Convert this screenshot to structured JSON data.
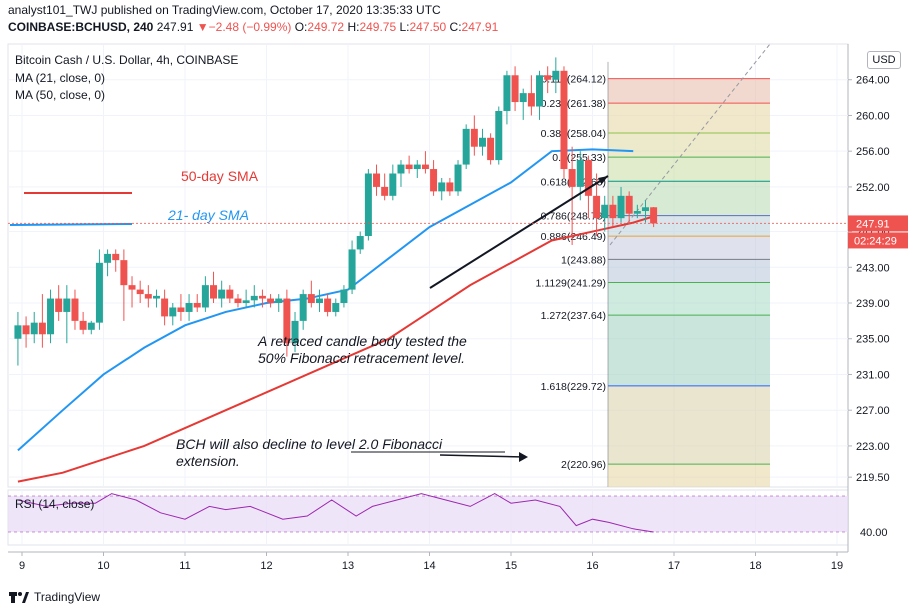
{
  "header": {
    "publisher_line": "analyst101_TWJ published on TradingView.com, October 17, 2020 13:35:33 UTC",
    "symbol": "COINBASE:BCHUSD, 240",
    "last": "247.91",
    "change_arrow": "▼",
    "change": "−2.48 (−0.99%)",
    "o_label": "O:",
    "o_value": "249.72",
    "h_label": "H:",
    "h_value": "249.75",
    "l_label": "L:",
    "l_value": "247.50",
    "c_label": "C:",
    "c_value": "247.91"
  },
  "legend": {
    "title": "Bitcoin Cash / U.S. Dollar, 4h, COINBASE",
    "ma21": "MA (21, close, 0)",
    "ma50": "MA (50, close, 0)",
    "rsi": "RSI (14, close)"
  },
  "currency_button": "USD",
  "price_tag": {
    "value": "247.91",
    "countdown": "02:24:29",
    "color": "#ef5350"
  },
  "annotations": {
    "sma50": "50-day SMA",
    "sma21": "21- day SMA",
    "note1_line1": "A retraced candle body tested the",
    "note1_line2": "50% Fibonacci retracement level.",
    "note2_line1": "BCH will also decline to level 2.0 Fibonacci",
    "note2_line2": "extension."
  },
  "footer": {
    "brand": "TradingView"
  },
  "colors": {
    "up": "#26a69a",
    "down": "#ef5350",
    "ma21": "#2196f3",
    "ma50": "#e53935",
    "rsi": "#9c27b0",
    "rsi_band": "#e9dcf7",
    "grid": "#f0f3fa"
  },
  "chart_data": {
    "type": "candlestick",
    "price_axis": {
      "ticks": [
        264.0,
        260.0,
        256.0,
        252.0,
        247.0,
        243.0,
        239.0,
        235.0,
        231.0,
        227.0,
        223.0,
        219.5
      ],
      "range": [
        218.4,
        268.0
      ]
    },
    "rsi_axis": {
      "ticks": [
        40.0
      ]
    },
    "x_ticks": [
      "9",
      "10",
      "11",
      "12",
      "13",
      "14",
      "15",
      "16",
      "17",
      "18",
      "19"
    ],
    "candles": [
      {
        "x": 8.95,
        "o": 235.0,
        "h": 238.0,
        "l": 232.0,
        "c": 236.5
      },
      {
        "x": 9.05,
        "o": 236.5,
        "h": 237.5,
        "l": 234.0,
        "c": 235.5
      },
      {
        "x": 9.15,
        "o": 235.5,
        "h": 238.0,
        "l": 234.5,
        "c": 236.8
      },
      {
        "x": 9.25,
        "o": 236.8,
        "h": 240.0,
        "l": 234.0,
        "c": 235.5
      },
      {
        "x": 9.35,
        "o": 235.5,
        "h": 240.5,
        "l": 234.5,
        "c": 239.5
      },
      {
        "x": 9.45,
        "o": 239.5,
        "h": 241.0,
        "l": 237.0,
        "c": 238.0
      },
      {
        "x": 9.55,
        "o": 238.0,
        "h": 241.0,
        "l": 234.5,
        "c": 239.5
      },
      {
        "x": 9.65,
        "o": 239.5,
        "h": 240.5,
        "l": 236.0,
        "c": 237.0
      },
      {
        "x": 9.75,
        "o": 237.0,
        "h": 238.0,
        "l": 235.5,
        "c": 236.0
      },
      {
        "x": 9.85,
        "o": 236.0,
        "h": 237.0,
        "l": 235.5,
        "c": 236.8
      },
      {
        "x": 9.95,
        "o": 236.8,
        "h": 245.0,
        "l": 236.0,
        "c": 243.5
      },
      {
        "x": 10.05,
        "o": 243.5,
        "h": 245.0,
        "l": 242.0,
        "c": 244.5
      },
      {
        "x": 10.15,
        "o": 244.5,
        "h": 245.0,
        "l": 242.5,
        "c": 243.8
      },
      {
        "x": 10.25,
        "o": 243.8,
        "h": 245.0,
        "l": 237.0,
        "c": 241.0
      },
      {
        "x": 10.35,
        "o": 241.0,
        "h": 242.0,
        "l": 238.5,
        "c": 240.5
      },
      {
        "x": 10.45,
        "o": 240.5,
        "h": 241.5,
        "l": 239.0,
        "c": 240.0
      },
      {
        "x": 10.55,
        "o": 240.0,
        "h": 241.0,
        "l": 238.5,
        "c": 239.5
      },
      {
        "x": 10.65,
        "o": 239.5,
        "h": 240.5,
        "l": 238.5,
        "c": 239.8
      },
      {
        "x": 10.75,
        "o": 239.5,
        "h": 240.5,
        "l": 236.5,
        "c": 237.5
      },
      {
        "x": 10.85,
        "o": 237.5,
        "h": 239.0,
        "l": 236.5,
        "c": 238.5
      },
      {
        "x": 10.95,
        "o": 238.5,
        "h": 240.0,
        "l": 237.0,
        "c": 238.0
      },
      {
        "x": 11.05,
        "o": 238.0,
        "h": 240.0,
        "l": 237.0,
        "c": 239.0
      },
      {
        "x": 11.15,
        "o": 239.0,
        "h": 240.0,
        "l": 238.0,
        "c": 238.5
      },
      {
        "x": 11.25,
        "o": 238.5,
        "h": 242.0,
        "l": 238.0,
        "c": 241.0
      },
      {
        "x": 11.35,
        "o": 241.0,
        "h": 242.5,
        "l": 239.0,
        "c": 239.5
      },
      {
        "x": 11.45,
        "o": 239.5,
        "h": 241.5,
        "l": 238.5,
        "c": 240.5
      },
      {
        "x": 11.55,
        "o": 240.5,
        "h": 241.0,
        "l": 239.0,
        "c": 239.5
      },
      {
        "x": 11.65,
        "o": 239.5,
        "h": 240.0,
        "l": 238.5,
        "c": 239.0
      },
      {
        "x": 11.75,
        "o": 239.0,
        "h": 240.5,
        "l": 238.5,
        "c": 239.3
      },
      {
        "x": 11.85,
        "o": 239.3,
        "h": 241.0,
        "l": 238.5,
        "c": 239.8
      },
      {
        "x": 11.95,
        "o": 239.8,
        "h": 240.5,
        "l": 238.5,
        "c": 239.5
      },
      {
        "x": 12.05,
        "o": 239.5,
        "h": 240.0,
        "l": 238.5,
        "c": 239.0
      },
      {
        "x": 12.15,
        "o": 239.0,
        "h": 240.0,
        "l": 238.0,
        "c": 239.5
      },
      {
        "x": 12.25,
        "o": 239.5,
        "h": 240.5,
        "l": 233.0,
        "c": 234.5
      },
      {
        "x": 12.35,
        "o": 234.5,
        "h": 238.0,
        "l": 233.5,
        "c": 237.0
      },
      {
        "x": 12.45,
        "o": 237.0,
        "h": 240.5,
        "l": 236.0,
        "c": 240.0
      },
      {
        "x": 12.55,
        "o": 240.0,
        "h": 241.5,
        "l": 238.5,
        "c": 239.0
      },
      {
        "x": 12.65,
        "o": 239.0,
        "h": 240.5,
        "l": 238.0,
        "c": 239.5
      },
      {
        "x": 12.75,
        "o": 239.5,
        "h": 240.0,
        "l": 237.5,
        "c": 238.0
      },
      {
        "x": 12.85,
        "o": 238.0,
        "h": 239.5,
        "l": 237.5,
        "c": 239.0
      },
      {
        "x": 12.95,
        "o": 239.0,
        "h": 241.0,
        "l": 238.5,
        "c": 240.5
      },
      {
        "x": 13.05,
        "o": 240.5,
        "h": 246.0,
        "l": 240.0,
        "c": 245.0
      },
      {
        "x": 13.15,
        "o": 245.0,
        "h": 247.0,
        "l": 244.5,
        "c": 246.5
      },
      {
        "x": 13.25,
        "o": 246.5,
        "h": 254.0,
        "l": 246.0,
        "c": 253.5
      },
      {
        "x": 13.35,
        "o": 253.5,
        "h": 254.5,
        "l": 251.0,
        "c": 252.0
      },
      {
        "x": 13.45,
        "o": 252.0,
        "h": 253.5,
        "l": 250.5,
        "c": 251.0
      },
      {
        "x": 13.55,
        "o": 251.0,
        "h": 254.5,
        "l": 250.5,
        "c": 253.5
      },
      {
        "x": 13.65,
        "o": 253.5,
        "h": 255.0,
        "l": 252.0,
        "c": 254.5
      },
      {
        "x": 13.75,
        "o": 254.5,
        "h": 255.5,
        "l": 253.5,
        "c": 254.0
      },
      {
        "x": 13.85,
        "o": 254.0,
        "h": 255.0,
        "l": 253.0,
        "c": 254.5
      },
      {
        "x": 13.95,
        "o": 254.5,
        "h": 256.0,
        "l": 253.5,
        "c": 254.0
      },
      {
        "x": 14.05,
        "o": 254.0,
        "h": 255.0,
        "l": 251.0,
        "c": 251.5
      },
      {
        "x": 14.15,
        "o": 251.5,
        "h": 253.0,
        "l": 250.5,
        "c": 252.5
      },
      {
        "x": 14.25,
        "o": 252.5,
        "h": 253.0,
        "l": 251.0,
        "c": 251.5
      },
      {
        "x": 14.35,
        "o": 251.5,
        "h": 255.0,
        "l": 251.0,
        "c": 254.5
      },
      {
        "x": 14.45,
        "o": 254.5,
        "h": 259.0,
        "l": 254.0,
        "c": 258.5
      },
      {
        "x": 14.55,
        "o": 258.5,
        "h": 260.0,
        "l": 255.5,
        "c": 256.5
      },
      {
        "x": 14.65,
        "o": 256.5,
        "h": 258.5,
        "l": 255.5,
        "c": 257.5
      },
      {
        "x": 14.75,
        "o": 257.5,
        "h": 258.0,
        "l": 254.5,
        "c": 255.0
      },
      {
        "x": 14.85,
        "o": 255.0,
        "h": 261.0,
        "l": 254.5,
        "c": 260.5
      },
      {
        "x": 14.95,
        "o": 260.5,
        "h": 265.0,
        "l": 259.0,
        "c": 264.5
      },
      {
        "x": 15.05,
        "o": 264.5,
        "h": 265.5,
        "l": 260.5,
        "c": 261.5
      },
      {
        "x": 15.15,
        "o": 261.5,
        "h": 263.0,
        "l": 259.5,
        "c": 262.5
      },
      {
        "x": 15.25,
        "o": 262.5,
        "h": 264.5,
        "l": 260.0,
        "c": 261.0
      },
      {
        "x": 15.35,
        "o": 261.0,
        "h": 265.0,
        "l": 259.5,
        "c": 264.5
      },
      {
        "x": 15.45,
        "o": 264.5,
        "h": 265.5,
        "l": 262.5,
        "c": 264.0
      },
      {
        "x": 15.55,
        "o": 264.0,
        "h": 266.5,
        "l": 262.5,
        "c": 265.0
      },
      {
        "x": 15.65,
        "o": 265.0,
        "h": 265.5,
        "l": 253.0,
        "c": 254.0
      },
      {
        "x": 15.75,
        "o": 254.0,
        "h": 256.5,
        "l": 245.5,
        "c": 252.0
      },
      {
        "x": 15.85,
        "o": 252.0,
        "h": 256.0,
        "l": 250.5,
        "c": 255.0
      },
      {
        "x": 15.95,
        "o": 255.0,
        "h": 255.5,
        "l": 248.5,
        "c": 251.0
      },
      {
        "x": 16.05,
        "o": 251.0,
        "h": 253.5,
        "l": 246.5,
        "c": 248.5
      },
      {
        "x": 16.15,
        "o": 248.5,
        "h": 251.0,
        "l": 247.0,
        "c": 250.0
      },
      {
        "x": 16.25,
        "o": 250.0,
        "h": 251.0,
        "l": 247.5,
        "c": 248.5
      },
      {
        "x": 16.35,
        "o": 248.5,
        "h": 252.0,
        "l": 248.0,
        "c": 251.0
      },
      {
        "x": 16.45,
        "o": 251.0,
        "h": 251.5,
        "l": 248.0,
        "c": 249.0
      },
      {
        "x": 16.55,
        "o": 249.0,
        "h": 250.0,
        "l": 248.5,
        "c": 249.3
      },
      {
        "x": 16.65,
        "o": 249.3,
        "h": 250.5,
        "l": 248.0,
        "c": 249.72
      },
      {
        "x": 16.75,
        "o": 249.72,
        "h": 249.75,
        "l": 247.5,
        "c": 247.91
      }
    ],
    "ma21": [
      [
        8.95,
        222.5
      ],
      [
        9.5,
        227.0
      ],
      [
        10.0,
        231.0
      ],
      [
        10.5,
        234.0
      ],
      [
        11.0,
        236.5
      ],
      [
        11.5,
        238.0
      ],
      [
        12.0,
        239.0
      ],
      [
        12.5,
        239.5
      ],
      [
        13.0,
        240.5
      ],
      [
        13.5,
        244.0
      ],
      [
        14.0,
        247.5
      ],
      [
        14.5,
        250.0
      ],
      [
        15.0,
        252.5
      ],
      [
        15.5,
        256.0
      ],
      [
        16.0,
        256.2
      ],
      [
        16.5,
        256.0
      ]
    ],
    "ma50": [
      [
        8.95,
        219.0
      ],
      [
        9.5,
        220.0
      ],
      [
        10.0,
        221.5
      ],
      [
        10.5,
        223.0
      ],
      [
        11.0,
        225.0
      ],
      [
        11.5,
        227.0
      ],
      [
        12.0,
        229.0
      ],
      [
        12.5,
        231.0
      ],
      [
        13.0,
        233.0
      ],
      [
        13.5,
        235.0
      ],
      [
        14.0,
        238.0
      ],
      [
        14.5,
        241.0
      ],
      [
        15.0,
        243.5
      ],
      [
        15.5,
        246.0
      ],
      [
        16.0,
        247.0
      ],
      [
        16.5,
        248.0
      ],
      [
        16.75,
        248.7
      ]
    ],
    "fibonacci": [
      {
        "ratio": "0.114",
        "price": 264.12,
        "color": "#ef5350"
      },
      {
        "ratio": "0.236",
        "price": 261.38,
        "color": "#ef5350"
      },
      {
        "ratio": "0.382",
        "price": 258.04,
        "color": "#8bc34a"
      },
      {
        "ratio": "0.5",
        "price": 255.33,
        "color": "#4caf50"
      },
      {
        "ratio": "0.618",
        "price": 252.63,
        "color": "#009688"
      },
      {
        "ratio": "0.786",
        "price": 248.78,
        "color": "#5c6bc0"
      },
      {
        "ratio": "0.886",
        "price": 246.49,
        "color": "#e8a33a"
      },
      {
        "ratio": "1",
        "price": 243.88,
        "color": "#787b86"
      },
      {
        "ratio": "1.1129",
        "price": 241.29,
        "color": "#4caf50"
      },
      {
        "ratio": "1.272",
        "price": 237.64,
        "color": "#4caf50"
      },
      {
        "ratio": "1.618",
        "price": 229.72,
        "color": "#2962ff"
      },
      {
        "ratio": "2",
        "price": 220.96,
        "color": "#4caf50"
      }
    ],
    "rsi": [
      [
        8.95,
        50
      ],
      [
        9.3,
        48
      ],
      [
        9.6,
        49
      ],
      [
        9.9,
        49
      ],
      [
        10.1,
        52
      ],
      [
        10.4,
        50
      ],
      [
        10.7,
        46
      ],
      [
        11.0,
        44
      ],
      [
        11.3,
        48
      ],
      [
        11.5,
        47
      ],
      [
        11.8,
        48
      ],
      [
        12.2,
        44
      ],
      [
        12.5,
        45
      ],
      [
        12.8,
        50
      ],
      [
        13.1,
        45
      ],
      [
        13.3,
        48
      ],
      [
        13.6,
        50
      ],
      [
        13.9,
        52
      ],
      [
        14.2,
        50
      ],
      [
        14.5,
        48
      ],
      [
        14.8,
        52
      ],
      [
        15.0,
        49
      ],
      [
        15.3,
        50
      ],
      [
        15.6,
        48
      ],
      [
        15.8,
        42
      ],
      [
        16.0,
        44
      ],
      [
        16.2,
        43
      ],
      [
        16.5,
        41
      ],
      [
        16.75,
        40
      ]
    ]
  }
}
